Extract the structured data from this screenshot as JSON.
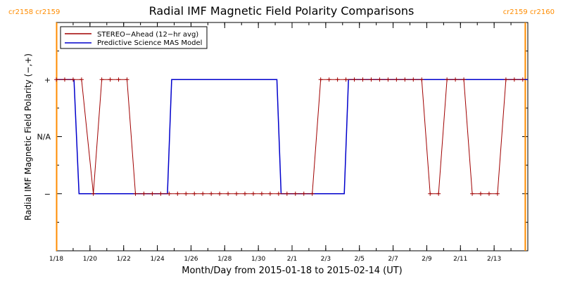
{
  "chart_data": {
    "type": "line",
    "title": "Radial IMF Magnetic Field Polarity Comparisons",
    "xlabel": "Month/Day from 2015-01-18 to 2015-02-14 (UT)",
    "ylabel": "Radial IMF Magnetic Field Polarity (−,+)",
    "xlim": [
      0,
      28
    ],
    "ylim": [
      -2,
      2
    ],
    "x_ticks": [
      {
        "day": 0,
        "label": "1/18"
      },
      {
        "day": 2,
        "label": "1/20"
      },
      {
        "day": 4,
        "label": "1/22"
      },
      {
        "day": 6,
        "label": "1/24"
      },
      {
        "day": 8,
        "label": "1/26"
      },
      {
        "day": 10,
        "label": "1/28"
      },
      {
        "day": 12,
        "label": "1/30"
      },
      {
        "day": 14,
        "label": "2/1"
      },
      {
        "day": 16,
        "label": "2/3"
      },
      {
        "day": 18,
        "label": "2/5"
      },
      {
        "day": 20,
        "label": "2/7"
      },
      {
        "day": 22,
        "label": "2/9"
      },
      {
        "day": 24,
        "label": "2/11"
      },
      {
        "day": 26,
        "label": "2/13"
      }
    ],
    "y_ticks": [
      {
        "value": 1,
        "label": "+"
      },
      {
        "value": 0,
        "label": "N/A"
      },
      {
        "value": -1,
        "label": "−"
      }
    ],
    "carrington": {
      "left": {
        "day": 0.02,
        "label_a": "cr2158",
        "label_b": "cr2159"
      },
      "right": {
        "day": 27.85,
        "label_a": "cr2159",
        "label_b": "cr2160"
      }
    },
    "colors": {
      "stereo": "#a00000",
      "model": "#0000cc",
      "carrington": "#ff8c00"
    },
    "series": [
      {
        "name": "STEREO−Ahead (12−hr avg)",
        "x": [
          0,
          0.5,
          1,
          1.5,
          2.2,
          2.7,
          3.2,
          3.7,
          4.2,
          4.7,
          5.2,
          5.7,
          6.2,
          6.7,
          7.2,
          7.7,
          8.2,
          8.7,
          9.2,
          9.7,
          10.2,
          10.7,
          11.2,
          11.7,
          12.2,
          12.7,
          13.2,
          13.7,
          14.2,
          14.7,
          15.2,
          15.7,
          16.2,
          16.7,
          17.2,
          17.7,
          18.2,
          18.7,
          19.2,
          19.7,
          20.2,
          20.7,
          21.2,
          21.7,
          22.2,
          22.7,
          23.2,
          23.7,
          24.2,
          24.7,
          25.2,
          25.7,
          26.2,
          26.7,
          27.2,
          27.7
        ],
        "y": [
          1,
          1,
          1,
          1,
          -1,
          1,
          1,
          1,
          1,
          -1,
          -1,
          -1,
          -1,
          -1,
          -1,
          -1,
          -1,
          -1,
          -1,
          -1,
          -1,
          -1,
          -1,
          -1,
          -1,
          -1,
          -1,
          -1,
          -1,
          -1,
          -1,
          1,
          1,
          1,
          1,
          1,
          1,
          1,
          1,
          1,
          1,
          1,
          1,
          1,
          -1,
          -1,
          1,
          1,
          1,
          -1,
          -1,
          -1,
          -1,
          1,
          1,
          1
        ]
      },
      {
        "name": "Predictive Science MAS Model",
        "x": [
          0,
          1.05,
          1.35,
          6.6,
          6.85,
          13.1,
          13.35,
          17.1,
          17.35,
          28
        ],
        "y": [
          1,
          1,
          -1,
          -1,
          1,
          1,
          -1,
          -1,
          1,
          1
        ]
      }
    ]
  }
}
